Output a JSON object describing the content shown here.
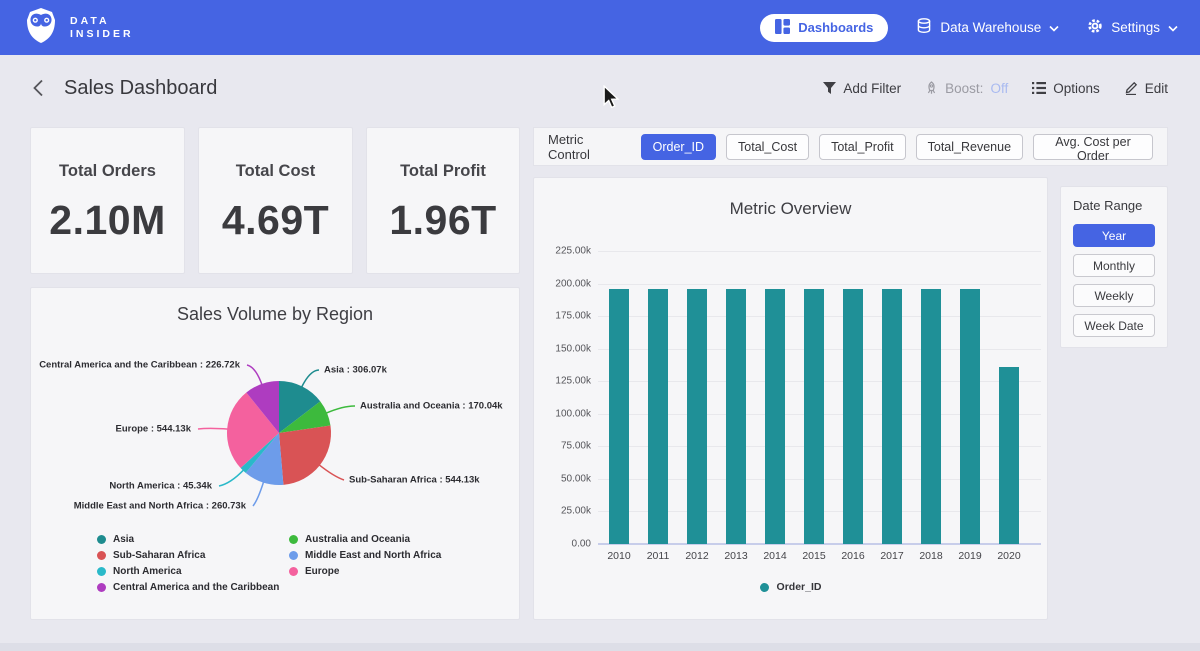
{
  "brand": {
    "line1": "DATA",
    "line2": "INSIDER"
  },
  "nav": {
    "dashboards": "Dashboards",
    "data_warehouse": "Data Warehouse",
    "settings": "Settings"
  },
  "header": {
    "title": "Sales Dashboard",
    "add_filter": "Add Filter",
    "boost_label": "Boost:",
    "boost_value": "Off",
    "options": "Options",
    "edit": "Edit"
  },
  "kpis": [
    {
      "label": "Total Orders",
      "value": "2.10M"
    },
    {
      "label": "Total Cost",
      "value": "4.69T"
    },
    {
      "label": "Total Profit",
      "value": "1.96T"
    }
  ],
  "metric_control": {
    "label": "Metric Control",
    "selected_index": 0,
    "options": [
      "Order_ID",
      "Total_Cost",
      "Total_Profit",
      "Total_Revenue",
      "Avg. Cost per Order"
    ]
  },
  "date_range": {
    "title": "Date Range",
    "selected_index": 0,
    "options": [
      "Year",
      "Monthly",
      "Weekly",
      "Week Date"
    ]
  },
  "chart_data": [
    {
      "type": "pie",
      "title": "Sales Volume by Region",
      "unit": "k",
      "legend_position": "bottom",
      "slices": [
        {
          "name": "Asia",
          "value": 306.07,
          "color": "#1e8c8f"
        },
        {
          "name": "Australia and Oceania",
          "value": 170.04,
          "color": "#3dba3d"
        },
        {
          "name": "Sub-Saharan Africa",
          "value": 544.13,
          "color": "#d95355"
        },
        {
          "name": "Middle East and North Africa",
          "value": 260.73,
          "color": "#6d9cea"
        },
        {
          "name": "North America",
          "value": 45.34,
          "color": "#2ab9c9"
        },
        {
          "name": "Europe",
          "value": 544.13,
          "color": "#f4619e"
        },
        {
          "name": "Central America and the Caribbean",
          "value": 226.72,
          "color": "#ae3cc0"
        }
      ]
    },
    {
      "type": "bar",
      "title": "Metric Overview",
      "categories": [
        "2010",
        "2011",
        "2012",
        "2013",
        "2014",
        "2015",
        "2016",
        "2017",
        "2018",
        "2019",
        "2020"
      ],
      "series": [
        {
          "name": "Order_ID",
          "values": [
            196000,
            196000,
            196000,
            196000,
            196000,
            196000,
            196000,
            196000,
            196000,
            196000,
            136100
          ]
        }
      ],
      "ylim": [
        0,
        225000
      ],
      "ytick_labels": [
        "0.00",
        "25.00k",
        "50.00k",
        "75.00k",
        "100.00k",
        "125.00k",
        "150.00k",
        "175.00k",
        "200.00k",
        "225.00k"
      ],
      "grid": true,
      "legend": [
        "Order_ID"
      ],
      "color": "#1f9097"
    }
  ],
  "colors": {
    "accent": "#4564e3",
    "bar_teal": "#1f9097",
    "boost_off": "#a9baf0"
  }
}
